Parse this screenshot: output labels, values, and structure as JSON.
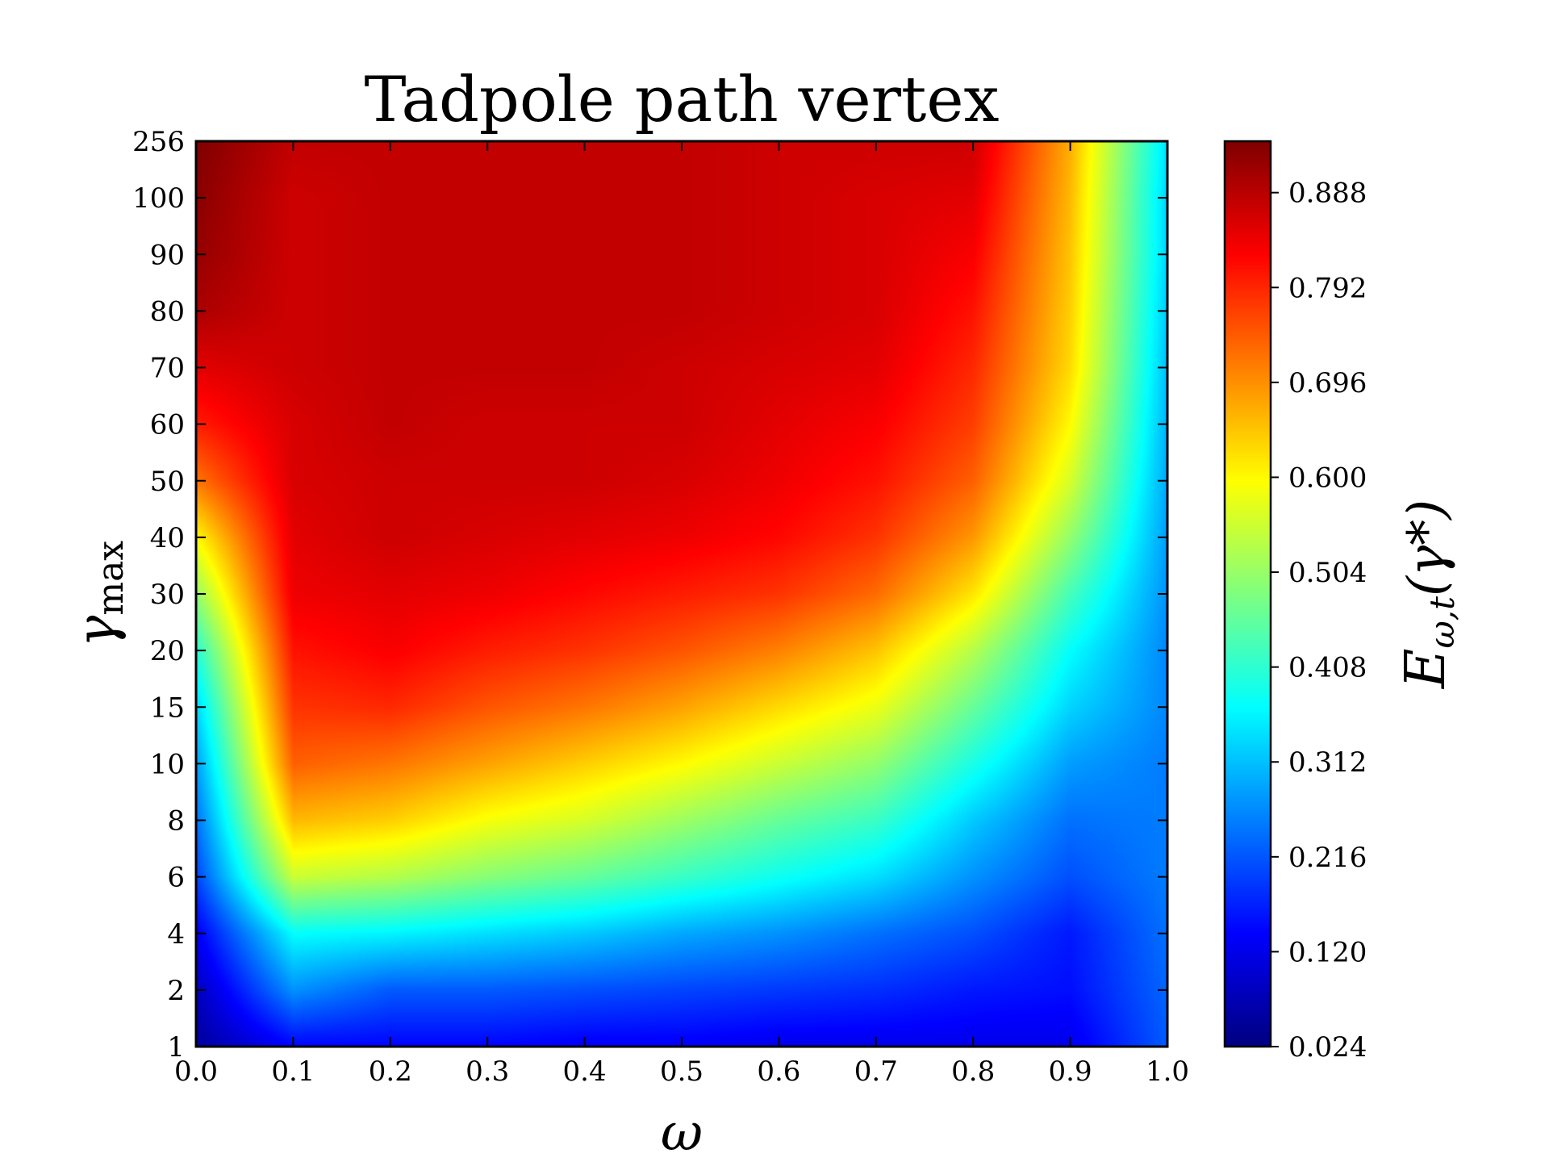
{
  "chart_data": {
    "type": "heatmap",
    "title": "Tadpole path vertex",
    "xlabel_symbol": "ω",
    "ylabel_symbol": "γ",
    "ylabel_subscript": "max",
    "colorbar_label": "E",
    "colorbar_label_subscript": "ω,t",
    "colorbar_label_arg": "(γ*)",
    "x_ticks": [
      "0.0",
      "0.1",
      "0.2",
      "0.3",
      "0.4",
      "0.5",
      "0.6",
      "0.7",
      "0.8",
      "0.9",
      "1.0"
    ],
    "y_ticks": [
      "1",
      "2",
      "4",
      "6",
      "8",
      "10",
      "15",
      "20",
      "30",
      "40",
      "50",
      "60",
      "70",
      "80",
      "90",
      "100",
      "256"
    ],
    "colorbar_ticks": [
      "0.024",
      "0.120",
      "0.216",
      "0.312",
      "0.408",
      "0.504",
      "0.600",
      "0.696",
      "0.792",
      "0.888"
    ],
    "colorbar_range": [
      0.024,
      0.94
    ],
    "colormap": "jet",
    "x": [
      0.0,
      0.1,
      0.2,
      0.3,
      0.4,
      0.5,
      0.6,
      0.7,
      0.8,
      0.9,
      1.0
    ],
    "y": [
      "1",
      "2",
      "4",
      "6",
      "8",
      "10",
      "15",
      "20",
      "30",
      "40",
      "50",
      "60",
      "70",
      "80",
      "90",
      "100",
      "256"
    ],
    "z": [
      [
        0.05,
        0.14,
        0.14,
        0.14,
        0.13,
        0.13,
        0.12,
        0.12,
        0.12,
        0.12,
        0.22
      ],
      [
        0.08,
        0.27,
        0.22,
        0.22,
        0.21,
        0.2,
        0.19,
        0.18,
        0.16,
        0.15,
        0.23
      ],
      [
        0.13,
        0.37,
        0.36,
        0.34,
        0.32,
        0.29,
        0.27,
        0.24,
        0.21,
        0.16,
        0.24
      ],
      [
        0.2,
        0.55,
        0.53,
        0.49,
        0.46,
        0.42,
        0.38,
        0.34,
        0.27,
        0.21,
        0.25
      ],
      [
        0.24,
        0.66,
        0.64,
        0.59,
        0.56,
        0.51,
        0.46,
        0.42,
        0.32,
        0.24,
        0.25
      ],
      [
        0.28,
        0.74,
        0.72,
        0.68,
        0.64,
        0.6,
        0.55,
        0.5,
        0.39,
        0.28,
        0.25
      ],
      [
        0.33,
        0.78,
        0.79,
        0.75,
        0.72,
        0.68,
        0.63,
        0.58,
        0.46,
        0.33,
        0.26
      ],
      [
        0.4,
        0.81,
        0.83,
        0.8,
        0.78,
        0.75,
        0.71,
        0.65,
        0.53,
        0.37,
        0.26
      ],
      [
        0.5,
        0.84,
        0.85,
        0.84,
        0.82,
        0.8,
        0.78,
        0.73,
        0.62,
        0.43,
        0.27
      ],
      [
        0.6,
        0.85,
        0.87,
        0.86,
        0.85,
        0.84,
        0.82,
        0.78,
        0.69,
        0.5,
        0.28
      ],
      [
        0.72,
        0.86,
        0.87,
        0.87,
        0.87,
        0.86,
        0.84,
        0.81,
        0.74,
        0.56,
        0.29
      ],
      [
        0.8,
        0.86,
        0.88,
        0.87,
        0.87,
        0.87,
        0.85,
        0.83,
        0.77,
        0.6,
        0.3
      ],
      [
        0.85,
        0.87,
        0.88,
        0.88,
        0.88,
        0.87,
        0.86,
        0.85,
        0.79,
        0.63,
        0.31
      ],
      [
        0.9,
        0.87,
        0.88,
        0.88,
        0.88,
        0.88,
        0.87,
        0.86,
        0.81,
        0.64,
        0.32
      ],
      [
        0.92,
        0.87,
        0.88,
        0.88,
        0.88,
        0.88,
        0.87,
        0.86,
        0.83,
        0.65,
        0.33
      ],
      [
        0.93,
        0.87,
        0.88,
        0.88,
        0.88,
        0.88,
        0.87,
        0.86,
        0.85,
        0.66,
        0.33
      ],
      [
        0.94,
        0.88,
        0.88,
        0.88,
        0.88,
        0.88,
        0.87,
        0.87,
        0.87,
        0.67,
        0.34
      ]
    ]
  }
}
